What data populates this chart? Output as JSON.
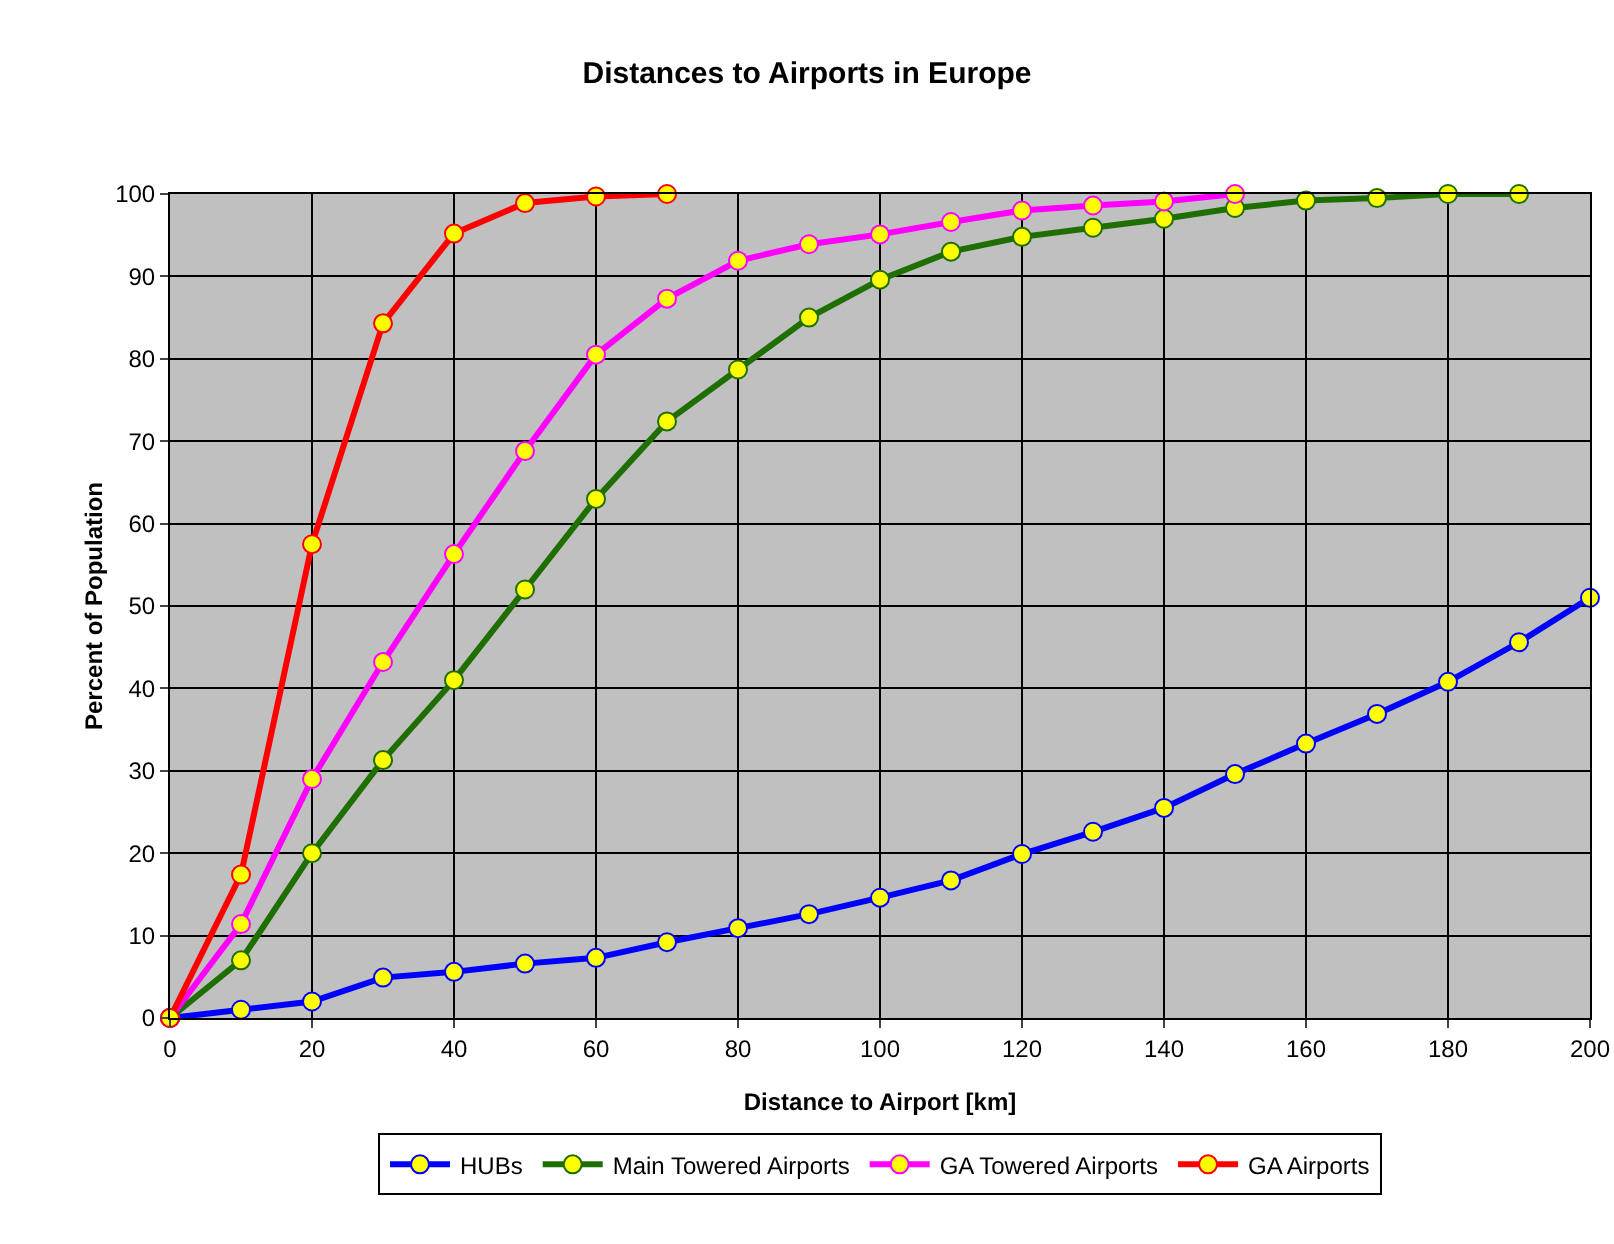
{
  "chart_data": {
    "type": "line",
    "title": "Distances to Airports in Europe",
    "xlabel": "Distance to Airport [km]",
    "ylabel": "Percent of Population",
    "xlim": [
      0,
      200
    ],
    "xticks": [
      0,
      20,
      40,
      60,
      80,
      100,
      120,
      140,
      160,
      180,
      200
    ],
    "ylim": [
      0,
      100
    ],
    "yticks": [
      0,
      10,
      20,
      30,
      40,
      50,
      60,
      70,
      80,
      90,
      100
    ],
    "grid": true,
    "legend": "bottom",
    "marker": "circle",
    "line_style": "solid",
    "series": [
      {
        "name": "HUBs",
        "color": "#0000ff",
        "x": [
          0,
          10,
          20,
          30,
          40,
          50,
          60,
          70,
          80,
          90,
          100,
          110,
          120,
          130,
          140,
          150,
          160,
          170,
          180,
          190,
          200
        ],
        "values": [
          0,
          1,
          2,
          4.9,
          5.6,
          6.6,
          7.3,
          9.2,
          10.9,
          12.6,
          14.6,
          16.7,
          19.9,
          22.6,
          25.5,
          29.6,
          33.3,
          36.9,
          40.8,
          45.6,
          51
        ]
      },
      {
        "name": "Main Towered Airports",
        "color": "#1e6e00",
        "x": [
          0,
          10,
          20,
          30,
          40,
          50,
          60,
          70,
          80,
          90,
          100,
          110,
          120,
          130,
          140,
          150,
          160,
          170,
          180,
          190
        ],
        "values": [
          0,
          7,
          20,
          31.3,
          41,
          52,
          63,
          72.4,
          78.7,
          85,
          89.6,
          93,
          94.8,
          95.9,
          97,
          98.3,
          99.2,
          99.5,
          100,
          100
        ]
      },
      {
        "name": "GA Towered Airports",
        "color": "#ff00ff",
        "x": [
          0,
          10,
          20,
          30,
          40,
          50,
          60,
          70,
          80,
          90,
          100,
          110,
          120,
          130,
          140,
          150
        ],
        "values": [
          0,
          11.4,
          29,
          43.2,
          56.3,
          68.8,
          80.5,
          87.3,
          91.9,
          93.9,
          95.1,
          96.6,
          98,
          98.6,
          99.1,
          100
        ]
      },
      {
        "name": "GA Airports",
        "color": "#ff0000",
        "x": [
          0,
          10,
          20,
          30,
          40,
          50,
          60,
          70
        ],
        "values": [
          0,
          17.4,
          57.5,
          84.3,
          95.2,
          98.9,
          99.7,
          100
        ]
      }
    ]
  }
}
